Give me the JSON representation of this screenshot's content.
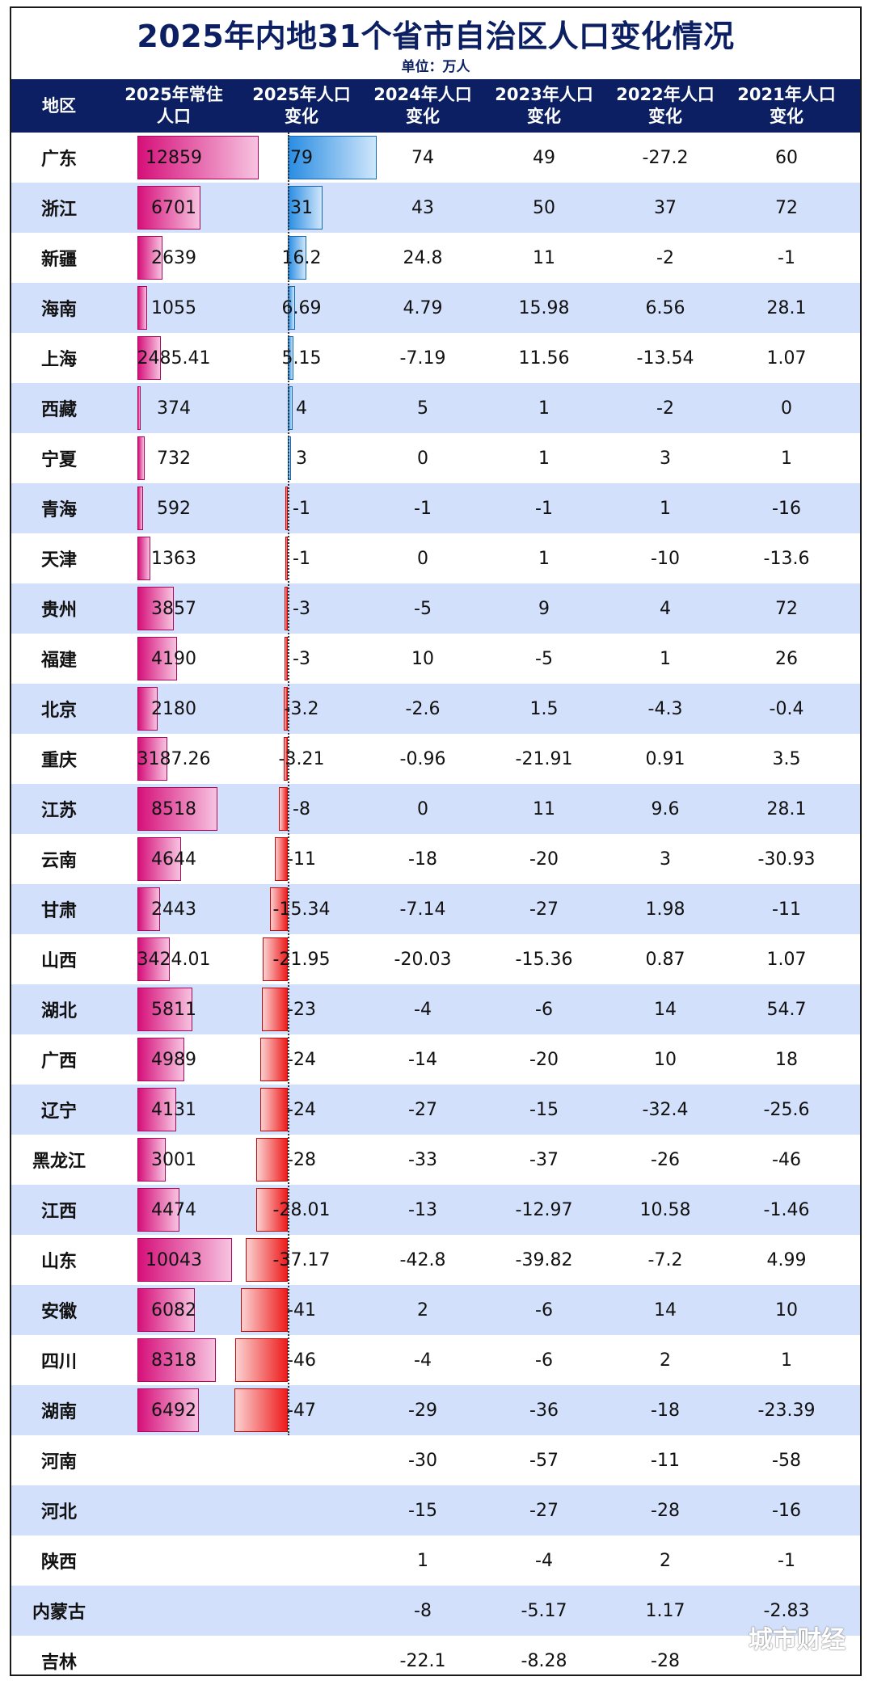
{
  "title": "2025年内地31个省市自治区人口变化情况",
  "unit": "单位：万人",
  "watermark": "城市财经",
  "colors": {
    "header": "#0b1f62",
    "alt_row": "#d3e0fb",
    "pop_bar": "#d6107a",
    "positive_bar": "#2a8de2",
    "negative_bar": "#ee1c1c"
  },
  "chart_data": {
    "type": "table",
    "columns": [
      "地区",
      "2025年常住人口",
      "2025年人口变化",
      "2024年人口变化",
      "2023年人口变化",
      "2022年人口变化",
      "2021年人口变化"
    ],
    "header_lines": [
      [
        "地区"
      ],
      [
        "2025年常住",
        "人口"
      ],
      [
        "2025年人口",
        "变化"
      ],
      [
        "2024年人口",
        "变化"
      ],
      [
        "2023年人口",
        "变化"
      ],
      [
        "2022年人口",
        "变化"
      ],
      [
        "2021年人口",
        "变化"
      ]
    ],
    "rows": [
      {
        "region": "广东",
        "pop2025": "12859",
        "c2025": "79",
        "c2024": "74",
        "c2023": "49",
        "c2022": "-27.2",
        "c2021": "60"
      },
      {
        "region": "浙江",
        "pop2025": "6701",
        "c2025": "31",
        "c2024": "43",
        "c2023": "50",
        "c2022": "37",
        "c2021": "72"
      },
      {
        "region": "新疆",
        "pop2025": "2639",
        "c2025": "16.2",
        "c2024": "24.8",
        "c2023": "11",
        "c2022": "-2",
        "c2021": "-1"
      },
      {
        "region": "海南",
        "pop2025": "1055",
        "c2025": "6.69",
        "c2024": "4.79",
        "c2023": "15.98",
        "c2022": "6.56",
        "c2021": "28.1"
      },
      {
        "region": "上海",
        "pop2025": "2485.41",
        "c2025": "5.15",
        "c2024": "-7.19",
        "c2023": "11.56",
        "c2022": "-13.54",
        "c2021": "1.07"
      },
      {
        "region": "西藏",
        "pop2025": "374",
        "c2025": "4",
        "c2024": "5",
        "c2023": "1",
        "c2022": "-2",
        "c2021": "0"
      },
      {
        "region": "宁夏",
        "pop2025": "732",
        "c2025": "3",
        "c2024": "0",
        "c2023": "1",
        "c2022": "3",
        "c2021": "1"
      },
      {
        "region": "青海",
        "pop2025": "592",
        "c2025": "-1",
        "c2024": "-1",
        "c2023": "-1",
        "c2022": "1",
        "c2021": "-16"
      },
      {
        "region": "天津",
        "pop2025": "1363",
        "c2025": "-1",
        "c2024": "0",
        "c2023": "1",
        "c2022": "-10",
        "c2021": "-13.6"
      },
      {
        "region": "贵州",
        "pop2025": "3857",
        "c2025": "-3",
        "c2024": "-5",
        "c2023": "9",
        "c2022": "4",
        "c2021": "72"
      },
      {
        "region": "福建",
        "pop2025": "4190",
        "c2025": "-3",
        "c2024": "10",
        "c2023": "-5",
        "c2022": "1",
        "c2021": "26"
      },
      {
        "region": "北京",
        "pop2025": "2180",
        "c2025": "-3.2",
        "c2024": "-2.6",
        "c2023": "1.5",
        "c2022": "-4.3",
        "c2021": "-0.4"
      },
      {
        "region": "重庆",
        "pop2025": "3187.26",
        "c2025": "-3.21",
        "c2024": "-0.96",
        "c2023": "-21.91",
        "c2022": "0.91",
        "c2021": "3.5"
      },
      {
        "region": "江苏",
        "pop2025": "8518",
        "c2025": "-8",
        "c2024": "0",
        "c2023": "11",
        "c2022": "9.6",
        "c2021": "28.1"
      },
      {
        "region": "云南",
        "pop2025": "4644",
        "c2025": "-11",
        "c2024": "-18",
        "c2023": "-20",
        "c2022": "3",
        "c2021": "-30.93"
      },
      {
        "region": "甘肃",
        "pop2025": "2443",
        "c2025": "-15.34",
        "c2024": "-7.14",
        "c2023": "-27",
        "c2022": "1.98",
        "c2021": "-11"
      },
      {
        "region": "山西",
        "pop2025": "3424.01",
        "c2025": "-21.95",
        "c2024": "-20.03",
        "c2023": "-15.36",
        "c2022": "0.87",
        "c2021": "1.07"
      },
      {
        "region": "湖北",
        "pop2025": "5811",
        "c2025": "-23",
        "c2024": "-4",
        "c2023": "-6",
        "c2022": "14",
        "c2021": "54.7"
      },
      {
        "region": "广西",
        "pop2025": "4989",
        "c2025": "-24",
        "c2024": "-14",
        "c2023": "-20",
        "c2022": "10",
        "c2021": "18"
      },
      {
        "region": "辽宁",
        "pop2025": "4131",
        "c2025": "-24",
        "c2024": "-27",
        "c2023": "-15",
        "c2022": "-32.4",
        "c2021": "-25.6"
      },
      {
        "region": "黑龙江",
        "pop2025": "3001",
        "c2025": "-28",
        "c2024": "-33",
        "c2023": "-37",
        "c2022": "-26",
        "c2021": "-46"
      },
      {
        "region": "江西",
        "pop2025": "4474",
        "c2025": "-28.01",
        "c2024": "-13",
        "c2023": "-12.97",
        "c2022": "10.58",
        "c2021": "-1.46"
      },
      {
        "region": "山东",
        "pop2025": "10043",
        "c2025": "-37.17",
        "c2024": "-42.8",
        "c2023": "-39.82",
        "c2022": "-7.2",
        "c2021": "4.99"
      },
      {
        "region": "安徽",
        "pop2025": "6082",
        "c2025": "-41",
        "c2024": "2",
        "c2023": "-6",
        "c2022": "14",
        "c2021": "10"
      },
      {
        "region": "四川",
        "pop2025": "8318",
        "c2025": "-46",
        "c2024": "-4",
        "c2023": "-6",
        "c2022": "2",
        "c2021": "1"
      },
      {
        "region": "湖南",
        "pop2025": "6492",
        "c2025": "-47",
        "c2024": "-29",
        "c2023": "-36",
        "c2022": "-18",
        "c2021": "-23.39"
      },
      {
        "region": "河南",
        "pop2025": "",
        "c2025": "",
        "c2024": "-30",
        "c2023": "-57",
        "c2022": "-11",
        "c2021": "-58"
      },
      {
        "region": "河北",
        "pop2025": "",
        "c2025": "",
        "c2024": "-15",
        "c2023": "-27",
        "c2022": "-28",
        "c2021": "-16"
      },
      {
        "region": "陕西",
        "pop2025": "",
        "c2025": "",
        "c2024": "1",
        "c2023": "-4",
        "c2022": "2",
        "c2021": "-1"
      },
      {
        "region": "内蒙古",
        "pop2025": "",
        "c2025": "",
        "c2024": "-8",
        "c2023": "-5.17",
        "c2022": "1.17",
        "c2021": "-2.83"
      },
      {
        "region": "吉林",
        "pop2025": "",
        "c2025": "",
        "c2024": "-22.1",
        "c2023": "-8.28",
        "c2022": "-28",
        "c2021": ""
      }
    ]
  }
}
